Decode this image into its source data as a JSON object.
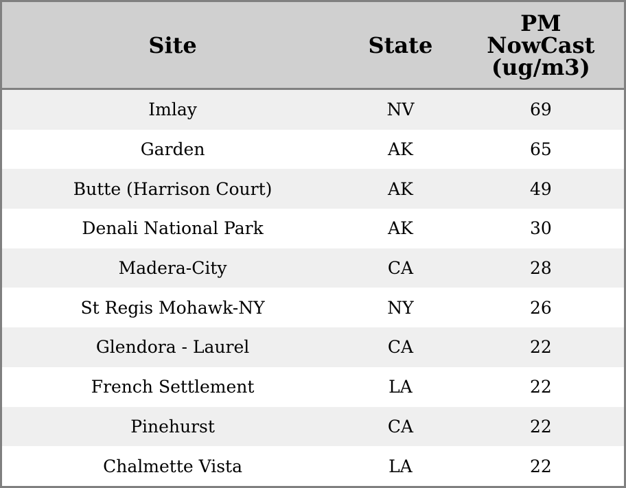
{
  "chart_data": {
    "type": "table",
    "columns": [
      "Site",
      "State",
      "PM NowCast (ug/m3)"
    ],
    "header_lines": [
      "PM",
      "NowCast",
      "(ug/m3)"
    ],
    "rows": [
      [
        "Imlay",
        "NV",
        "69"
      ],
      [
        "Garden",
        "AK",
        "65"
      ],
      [
        "Butte (Harrison Court)",
        "AK",
        "49"
      ],
      [
        "Denali National Park",
        "AK",
        "30"
      ],
      [
        "Madera-City",
        "CA",
        "28"
      ],
      [
        "St Regis Mohawk-NY",
        "NY",
        "26"
      ],
      [
        "Glendora - Laurel",
        "CA",
        "22"
      ],
      [
        "French Settlement",
        "LA",
        "22"
      ],
      [
        "Pinehurst",
        "CA",
        "22"
      ],
      [
        "Chalmette Vista",
        "LA",
        "22"
      ]
    ]
  },
  "colors": {
    "header_bg": "#d0d0d0",
    "row_alt_bg": "#efefef",
    "border": "#808080"
  }
}
